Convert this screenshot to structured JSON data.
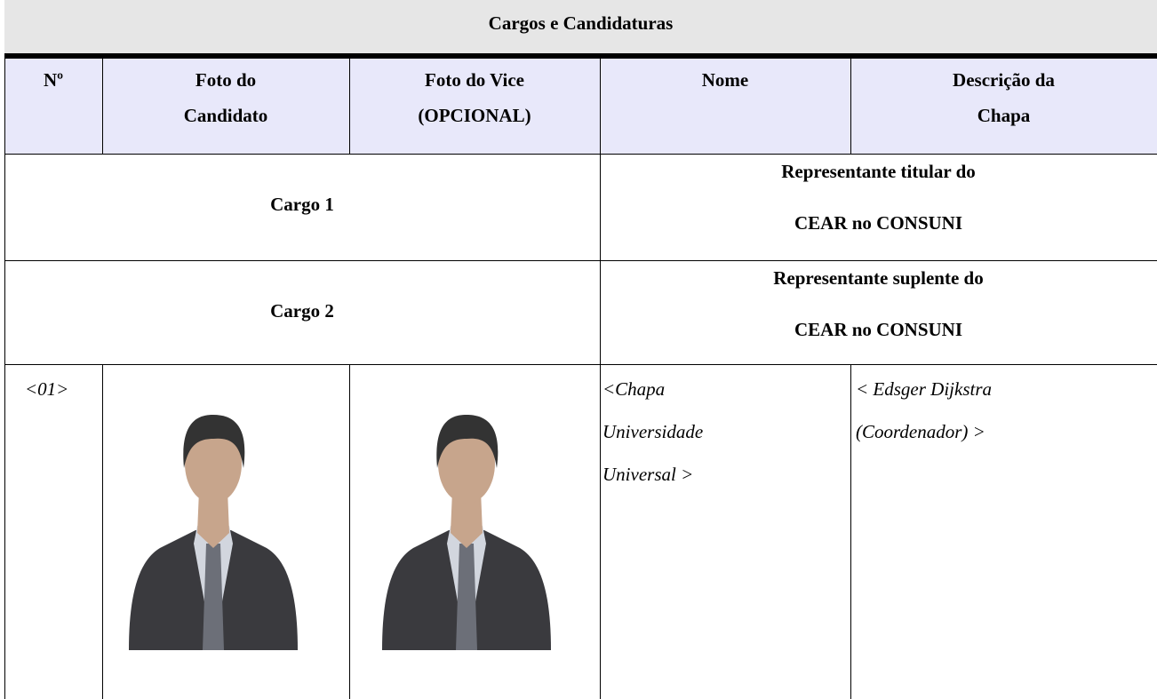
{
  "title": "Cargos e Candidaturas",
  "header": [
    [
      "Nº"
    ],
    [
      "Foto do",
      "Candidato"
    ],
    [
      "Foto do Vice",
      "(OPCIONAL)"
    ],
    [
      "Nome"
    ],
    [
      "Descrição da",
      "Chapa"
    ]
  ],
  "cargos": [
    {
      "label": "Cargo 1",
      "description": [
        "Representante titular do",
        "CEAR no CONSUNI"
      ]
    },
    {
      "label": "Cargo 2",
      "description": [
        "Representante suplente do",
        "CEAR no CONSUNI"
      ]
    }
  ],
  "candidates": [
    {
      "number": "<01>",
      "name": [
        "<Chapa",
        "Universidade",
        "Universal >"
      ],
      "description": [
        "< Edsger Dijkstra",
        "(Coordenador) >"
      ]
    }
  ]
}
